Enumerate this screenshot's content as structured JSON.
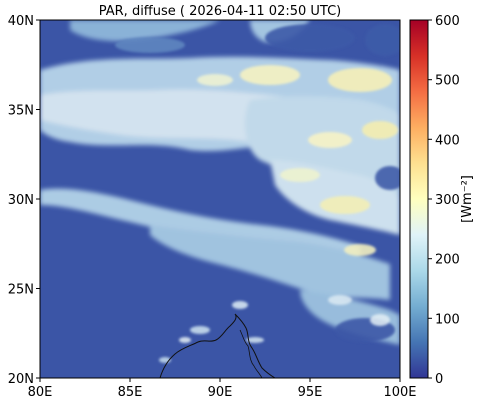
{
  "title": "PAR, diffuse ( 2026-04-11 02:50 UTC)",
  "map": {
    "x_ticks": [
      "80E",
      "85E",
      "90E",
      "95E",
      "100E"
    ],
    "y_ticks": [
      "20N",
      "25N",
      "30N",
      "35N",
      "40N"
    ],
    "lon_range": [
      80,
      100
    ],
    "lat_range": [
      20,
      40
    ],
    "background_value_color": "#3b55a6"
  },
  "colorbar": {
    "label": "[Wm⁻²]",
    "ticks": [
      "0",
      "100",
      "200",
      "300",
      "400",
      "500",
      "600"
    ],
    "range": [
      0,
      600
    ],
    "colormap": "RdYlBu_r",
    "stops": [
      "#313695",
      "#4575b4",
      "#74add1",
      "#abd9e9",
      "#e0f3f8",
      "#ffffbf",
      "#fee090",
      "#fdae61",
      "#f46d43",
      "#d73027",
      "#a50026"
    ]
  }
}
